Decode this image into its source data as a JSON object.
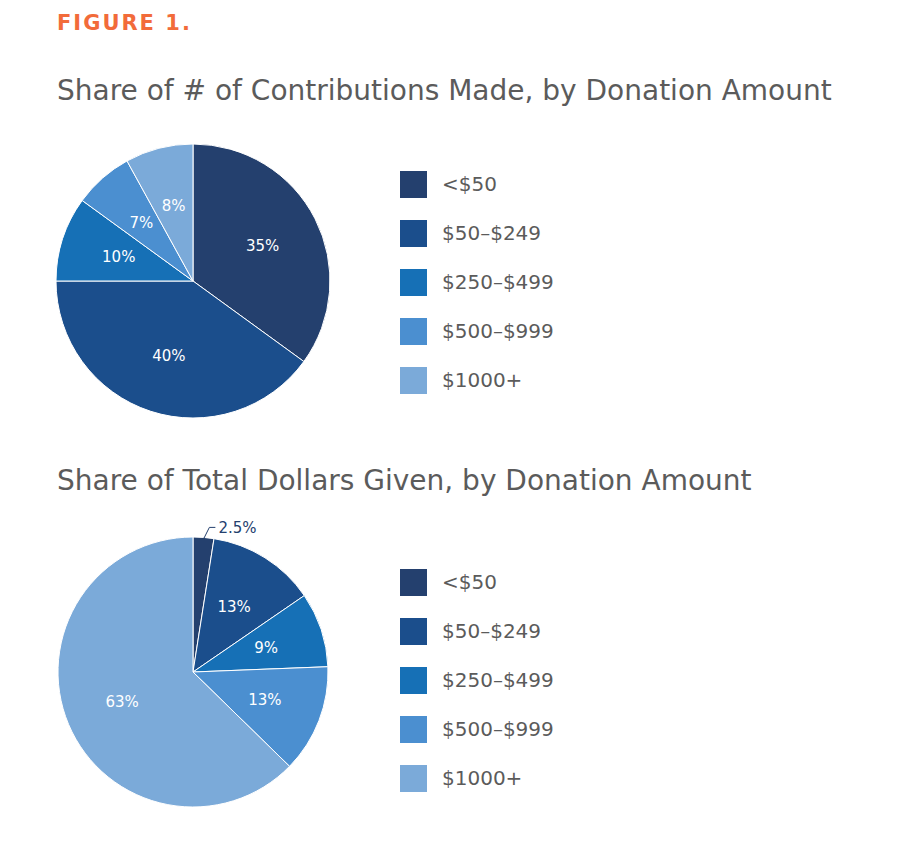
{
  "figure": "FIGURE 1.",
  "chart_data": [
    {
      "type": "pie",
      "title": "Share of # of Contributions Made, by Donation Amount",
      "categories": [
        "<$50",
        "$50–$249",
        "$250–$499",
        "$500–$999",
        "$1000+"
      ],
      "values": [
        35,
        40,
        10,
        7,
        8
      ],
      "value_labels": [
        "35%",
        "40%",
        "10%",
        "7%",
        "8%"
      ],
      "colors": [
        "#24406e",
        "#1b4e8c",
        "#1670b6",
        "#4b8fd0",
        "#7baad9"
      ],
      "data_labels": true,
      "legend": "right"
    },
    {
      "type": "pie",
      "title": "Share of Total Dollars Given, by Donation Amount",
      "categories": [
        "<$50",
        "$50–$249",
        "$250–$499",
        "$500–$999",
        "$1000+"
      ],
      "values": [
        2.5,
        13,
        9,
        13,
        63
      ],
      "value_labels": [
        "2.5%",
        "13%",
        "9%",
        "13%",
        "63%"
      ],
      "colors": [
        "#24406e",
        "#1b4e8c",
        "#1670b6",
        "#4b8fd0",
        "#7baad9"
      ],
      "data_labels": true,
      "legend": "right"
    }
  ]
}
